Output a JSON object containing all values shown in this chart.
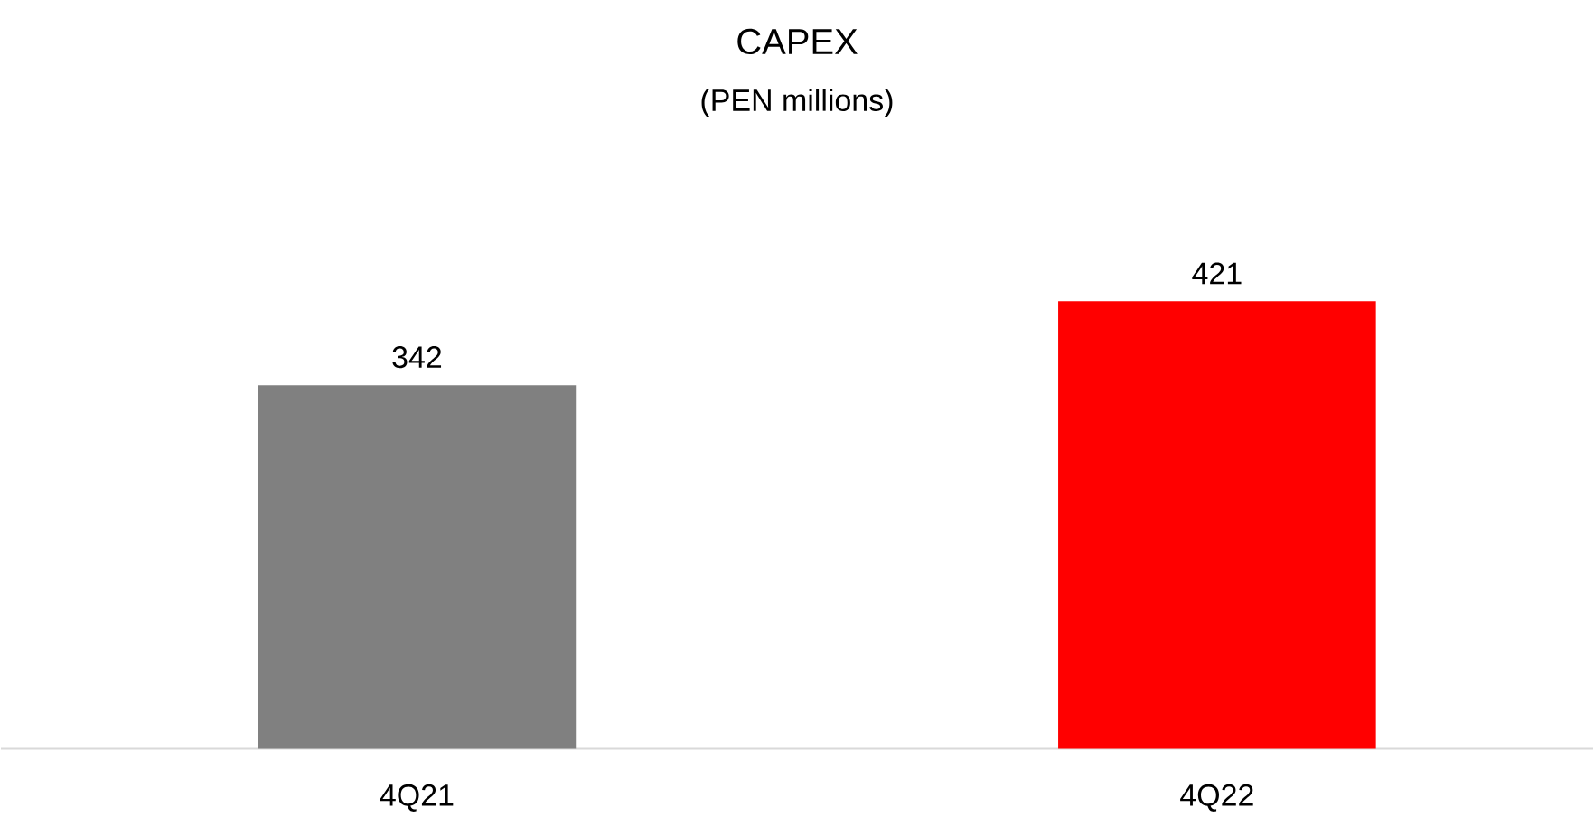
{
  "chart_data": {
    "type": "bar",
    "title": "CAPEX",
    "subtitle": "(PEN millions)",
    "categories": [
      "4Q21",
      "4Q22"
    ],
    "values": [
      342,
      421
    ],
    "colors": [
      "#808080",
      "#ff0000"
    ],
    "data_labels": true
  }
}
